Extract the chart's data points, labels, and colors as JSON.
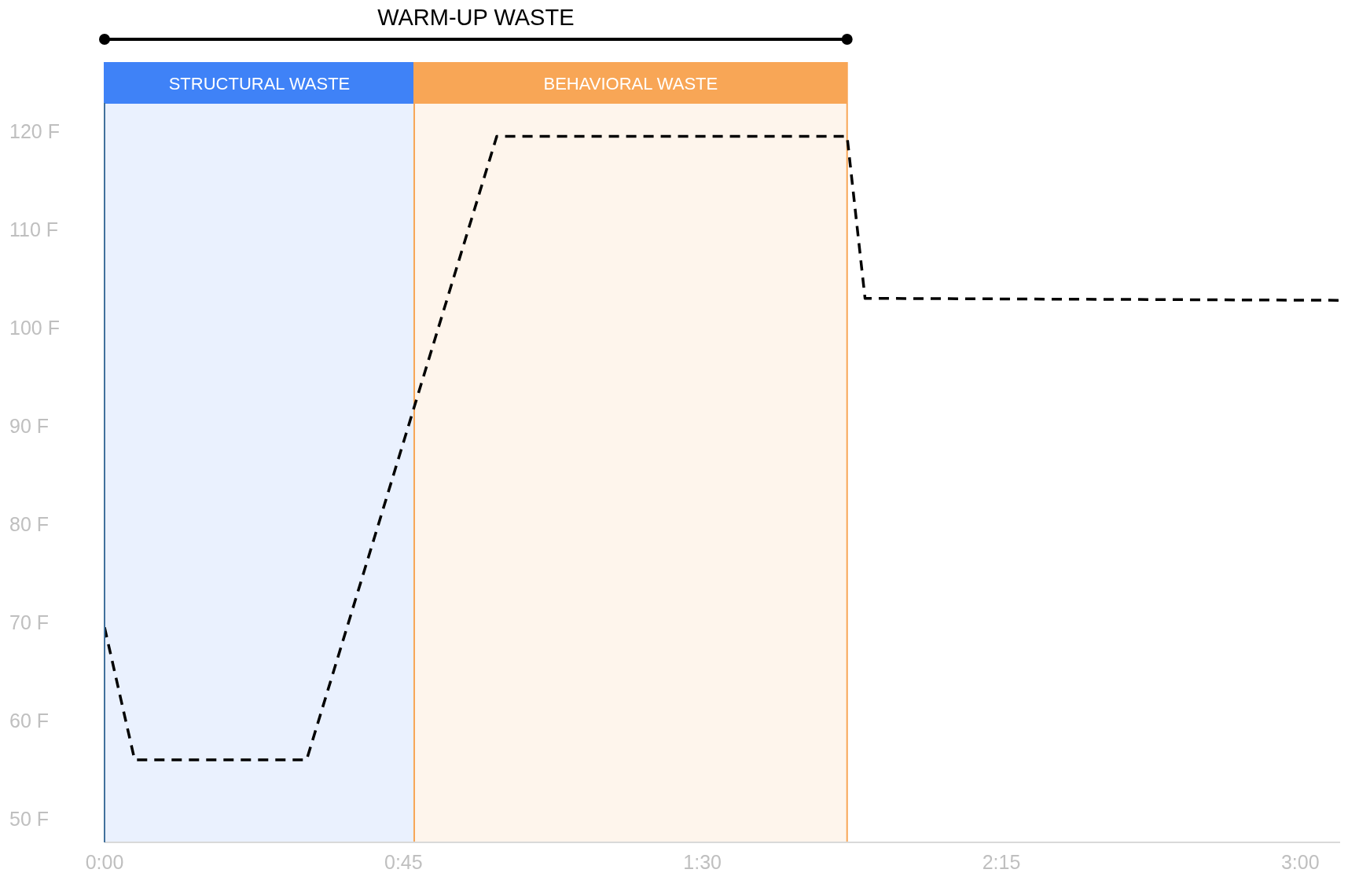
{
  "chart_data": {
    "type": "line",
    "annotations": [
      "WARM-UP WASTE"
    ],
    "x": [
      0,
      0.0755,
      0.507,
      0.984,
      1.863,
      1.908,
      3.1
    ],
    "series": [
      {
        "color": "#000000",
        "values": [
          69.5,
          56,
          56,
          119.5,
          119.5,
          103,
          102.8
        ]
      }
    ],
    "xlim": [
      0,
      3.1
    ],
    "xticks": [
      {
        "value": 0,
        "label": "0:00"
      },
      {
        "value": 0.75,
        "label": "0:45"
      },
      {
        "value": 1.5,
        "label": "1:30"
      },
      {
        "value": 2.25,
        "label": "2:15"
      },
      {
        "value": 3,
        "label": "3:00"
      }
    ],
    "ylim": [
      47.6,
      122.9
    ],
    "yticks": [
      {
        "value": 50,
        "label": "50 F"
      },
      {
        "value": 60,
        "label": "60 F"
      },
      {
        "value": 70,
        "label": "70 F"
      },
      {
        "value": 80,
        "label": "80 F"
      },
      {
        "value": 90,
        "label": "90 F"
      },
      {
        "value": 100,
        "label": "100 F"
      },
      {
        "value": 110,
        "label": "110 F"
      },
      {
        "value": 120,
        "label": "120 F"
      }
    ],
    "bands": [
      {
        "axis": "x",
        "from": 0,
        "to": 0.777,
        "label": "STRUCTURAL WASTE",
        "color": "#3f82f7"
      },
      {
        "axis": "x",
        "from": 0.777,
        "to": 1.863,
        "label": "BEHAVIORAL WASTE",
        "color": "#f8a656"
      }
    ],
    "grid": false,
    "legend": false,
    "line_style": "dashed"
  }
}
